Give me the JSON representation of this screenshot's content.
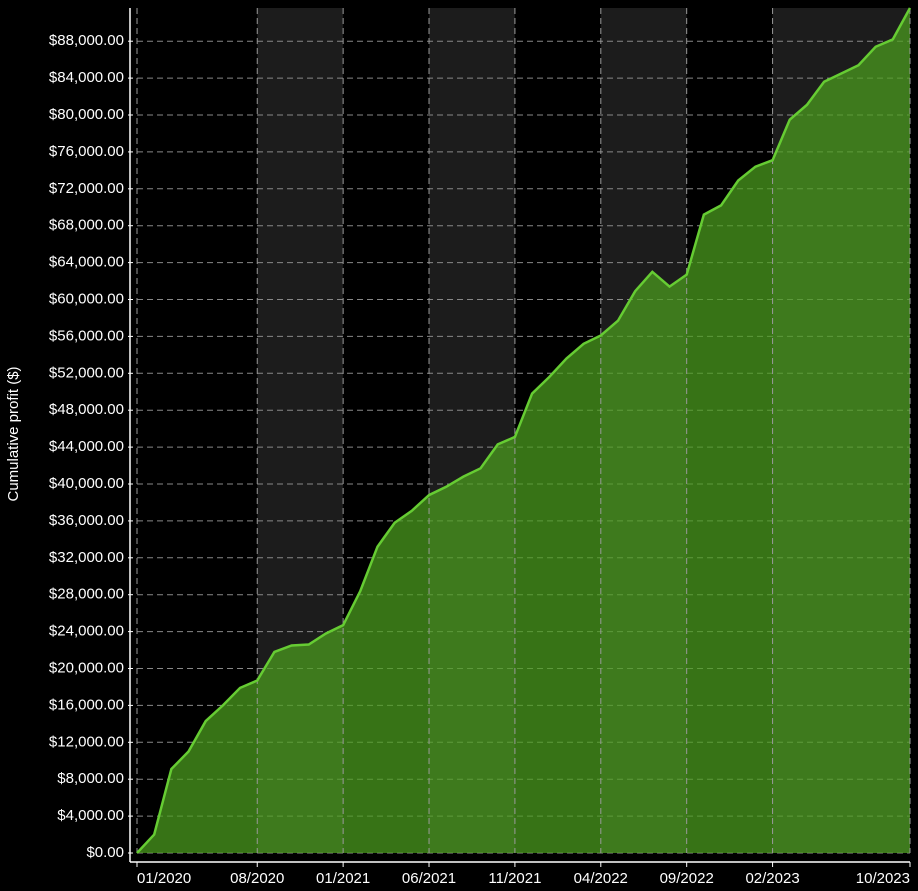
{
  "chart_data": {
    "type": "area",
    "y_label": "Cumulative profit ($)",
    "categories": [
      "01/2020",
      null,
      null,
      null,
      null,
      null,
      null,
      "08/2020",
      null,
      null,
      null,
      null,
      "01/2021",
      null,
      null,
      null,
      null,
      "06/2021",
      null,
      null,
      null,
      null,
      "11/2021",
      null,
      null,
      null,
      null,
      "04/2022",
      null,
      null,
      null,
      null,
      "09/2022",
      null,
      null,
      null,
      null,
      "02/2023",
      null,
      null,
      null,
      null,
      null,
      null,
      null,
      "10/2023"
    ],
    "values": [
      0,
      2000,
      9100,
      11000,
      14300,
      16000,
      17900,
      18700,
      21800,
      22500,
      22600,
      23800,
      24700,
      28400,
      33200,
      35800,
      37100,
      38800,
      39700,
      40800,
      41700,
      44300,
      45100,
      49800,
      51600,
      53600,
      55200,
      56100,
      57700,
      60900,
      63000,
      61400,
      62700,
      69200,
      70200,
      72900,
      74400,
      75100,
      79500,
      81100,
      83600,
      84500,
      85400,
      87400,
      88200,
      91600
    ],
    "color": "#66cc33",
    "ylim": [
      0,
      91600
    ],
    "yticks": [
      {
        "value": 0,
        "label": "$0.00"
      },
      {
        "value": 4000,
        "label": "$4,000.00"
      },
      {
        "value": 8000,
        "label": "$8,000.00"
      },
      {
        "value": 12000,
        "label": "$12,000.00"
      },
      {
        "value": 16000,
        "label": "$16,000.00"
      },
      {
        "value": 20000,
        "label": "$20,000.00"
      },
      {
        "value": 24000,
        "label": "$24,000.00"
      },
      {
        "value": 28000,
        "label": "$28,000.00"
      },
      {
        "value": 32000,
        "label": "$32,000.00"
      },
      {
        "value": 36000,
        "label": "$36,000.00"
      },
      {
        "value": 40000,
        "label": "$40,000.00"
      },
      {
        "value": 44000,
        "label": "$44,000.00"
      },
      {
        "value": 48000,
        "label": "$48,000.00"
      },
      {
        "value": 52000,
        "label": "$52,000.00"
      },
      {
        "value": 56000,
        "label": "$56,000.00"
      },
      {
        "value": 60000,
        "label": "$60,000.00"
      },
      {
        "value": 64000,
        "label": "$64,000.00"
      },
      {
        "value": 68000,
        "label": "$68,000.00"
      },
      {
        "value": 72000,
        "label": "$72,000.00"
      },
      {
        "value": 76000,
        "label": "$76,000.00"
      },
      {
        "value": 80000,
        "label": "$80,000.00"
      },
      {
        "value": 84000,
        "label": "$84,000.00"
      },
      {
        "value": 88000,
        "label": "$88,000.00"
      }
    ],
    "grid": true
  }
}
